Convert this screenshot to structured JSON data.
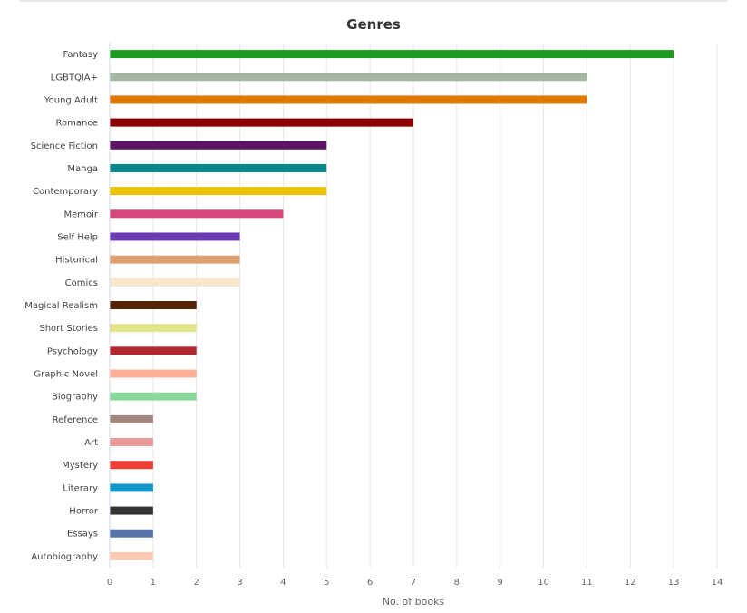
{
  "chart_data": {
    "type": "bar",
    "orientation": "horizontal",
    "title": "Genres",
    "xlabel": "No. of books",
    "ylabel": "",
    "xlim": [
      0,
      14
    ],
    "x_ticks": [
      "0",
      "1",
      "2",
      "3",
      "4",
      "5",
      "6",
      "7",
      "8",
      "9",
      "10",
      "11",
      "12",
      "13",
      "14"
    ],
    "grid": true,
    "legend": "none",
    "categories": [
      "Fantasy",
      "LGBTQIA+",
      "Young Adult",
      "Romance",
      "Science Fiction",
      "Manga",
      "Contemporary",
      "Memoir",
      "Self Help",
      "Historical",
      "Comics",
      "Magical Realism",
      "Short Stories",
      "Psychology",
      "Graphic Novel",
      "Biography",
      "Reference",
      "Art",
      "Mystery",
      "Literary",
      "Horror",
      "Essays",
      "Autobiography"
    ],
    "values": [
      13,
      11,
      11,
      7,
      5,
      5,
      5,
      4,
      3,
      3,
      3,
      2,
      2,
      2,
      2,
      2,
      1,
      1,
      1,
      1,
      1,
      1,
      1
    ],
    "colors": [
      "#1a9a1f",
      "#a4b8a1",
      "#e07800",
      "#8b0000",
      "#5e1464",
      "#0a858b",
      "#e6c200",
      "#d6467a",
      "#6a3bb5",
      "#dfa070",
      "#f6e8cc",
      "#552405",
      "#e4e48a",
      "#b3272e",
      "#ffb09a",
      "#8ad89a",
      "#a3877e",
      "#ee9999",
      "#ef3e36",
      "#1198c9",
      "#333333",
      "#5775a8",
      "#ffc9b4"
    ]
  }
}
